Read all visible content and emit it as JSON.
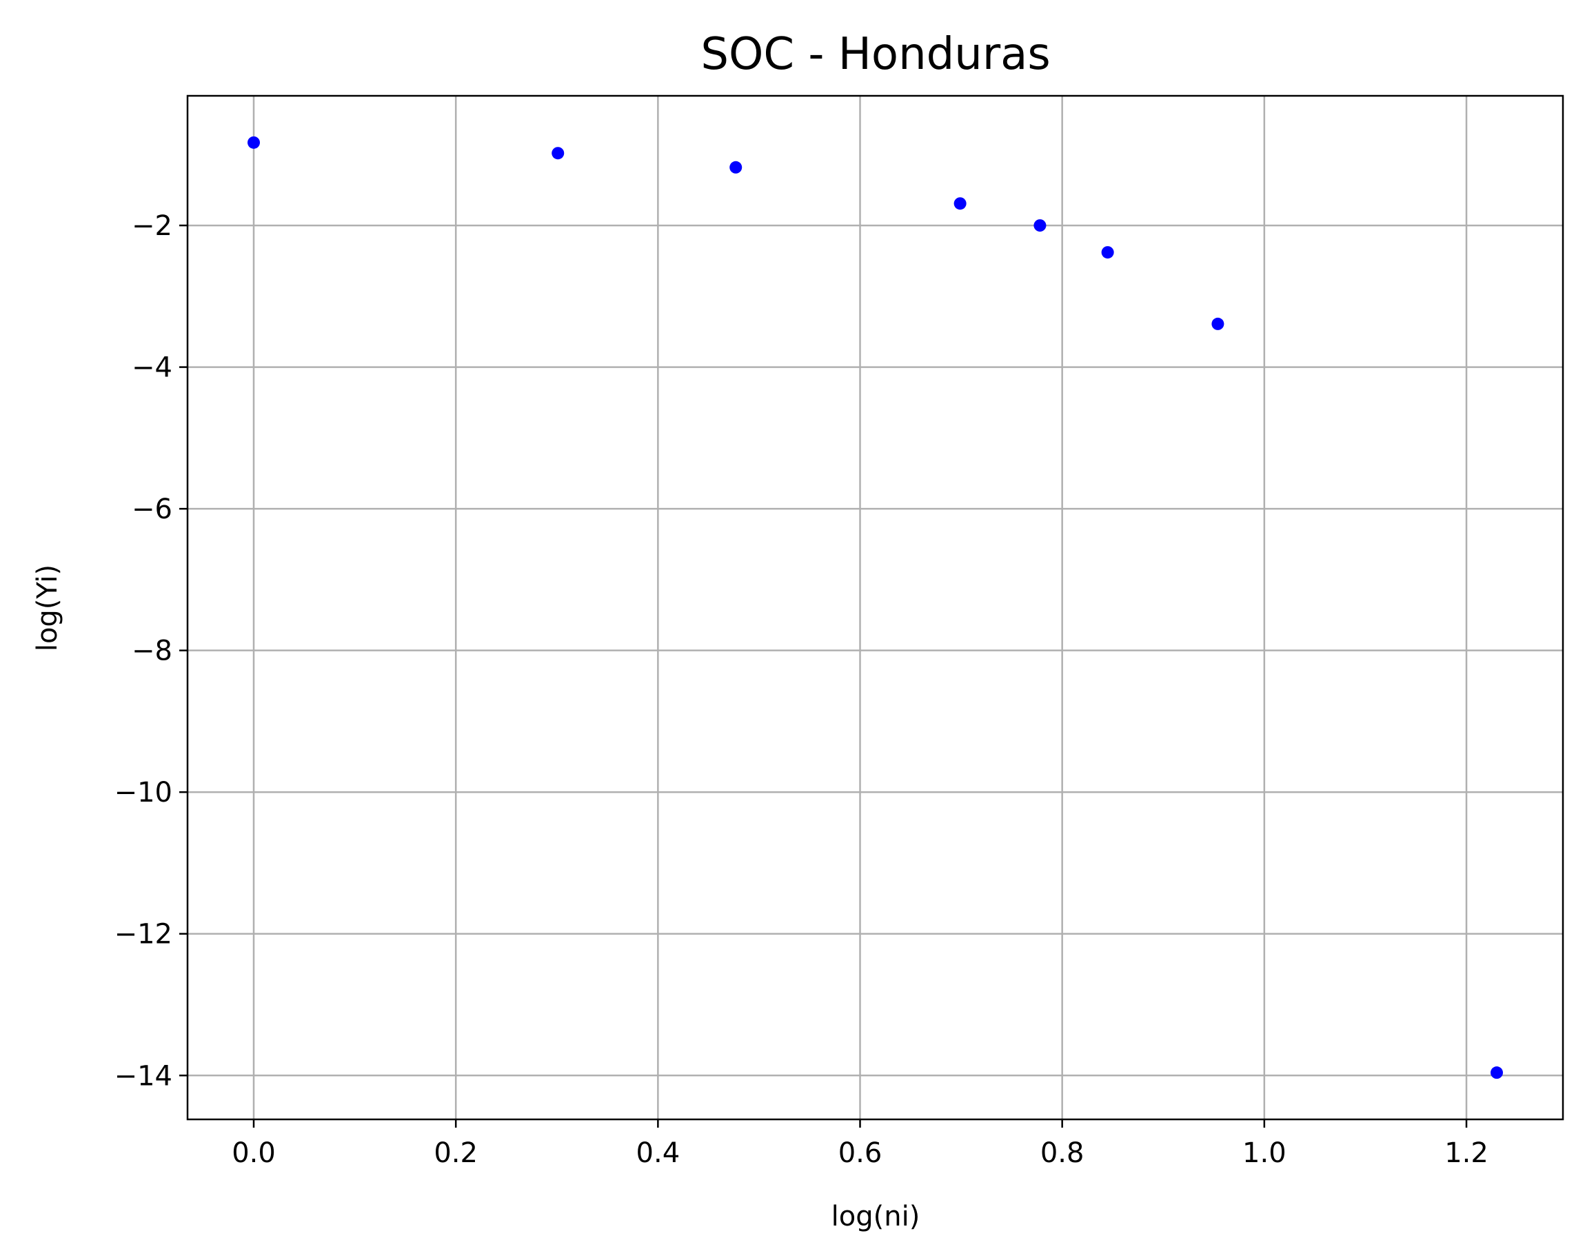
{
  "chart_data": {
    "type": "scatter",
    "title": "SOC - Honduras",
    "xlabel": "log(ni)",
    "ylabel": "log(Yi)",
    "xlim": [
      -0.0655,
      1.2955
    ],
    "ylim": [
      -14.62,
      -0.17
    ],
    "x_ticks": [
      0.0,
      0.2,
      0.4,
      0.6,
      0.8,
      1.0,
      1.2
    ],
    "x_tick_labels": [
      "0.0",
      "0.2",
      "0.4",
      "0.6",
      "0.8",
      "1.0",
      "1.2"
    ],
    "y_ticks": [
      -2,
      -4,
      -6,
      -8,
      -10,
      -12,
      -14
    ],
    "y_tick_labels": [
      "−2",
      "−4",
      "−6",
      "−8",
      "−10",
      "−12",
      "−14"
    ],
    "grid": true,
    "marker_color": "#0000ff",
    "points": [
      {
        "x": 0.0,
        "y": -0.83
      },
      {
        "x": 0.301,
        "y": -0.98
      },
      {
        "x": 0.477,
        "y": -1.18
      },
      {
        "x": 0.699,
        "y": -1.69
      },
      {
        "x": 0.778,
        "y": -2.0
      },
      {
        "x": 0.845,
        "y": -2.38
      },
      {
        "x": 0.954,
        "y": -3.39
      },
      {
        "x": 1.23,
        "y": -13.96
      }
    ]
  }
}
